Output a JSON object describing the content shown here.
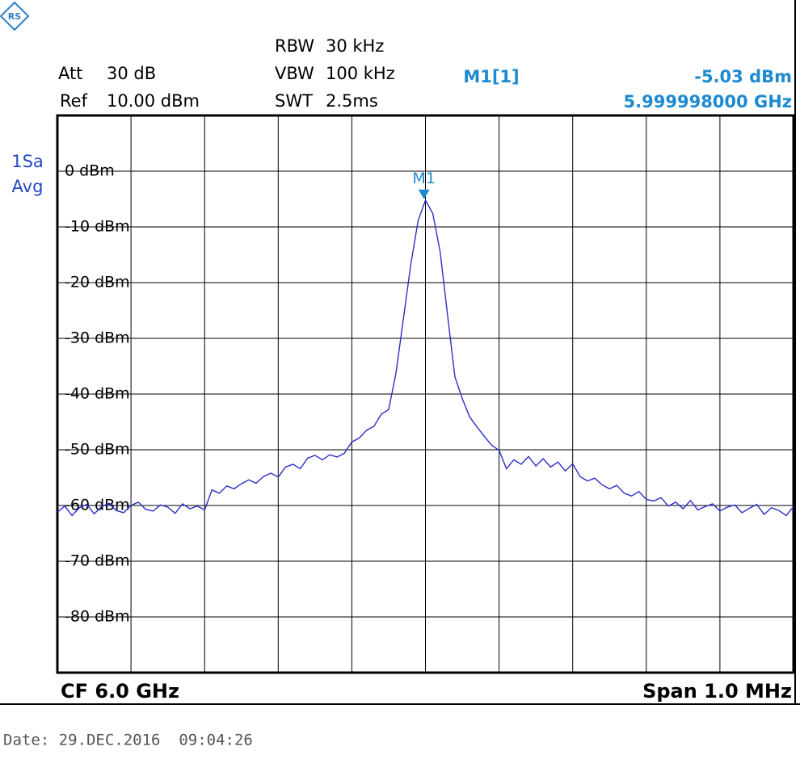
{
  "chart_data": {
    "type": "line",
    "settings": [
      {
        "name": "Att",
        "value": "30 dB"
      },
      {
        "name": "Ref",
        "value": "10.00 dBm"
      },
      {
        "name": "RBW",
        "value": "30 kHz"
      },
      {
        "name": "VBW",
        "value": "100 kHz"
      },
      {
        "name": "SWT",
        "value": "2.5ms"
      }
    ],
    "trace_mode": [
      "1Sa",
      "Avg"
    ],
    "marker": {
      "name": "M1",
      "readout_name": "M1[1]",
      "x": 5.999998,
      "x_label": "5.999998000 GHz",
      "y": -5.03,
      "y_label": "-5.03 dBm"
    },
    "center_label": "CF 6.0 GHz",
    "span_label": "Span 1.0 MHz",
    "date": "Date: 29.DEC.2016  09:04:26",
    "color": "#2b2fc8",
    "grid": true,
    "xlim": [
      5.9995,
      6.0005
    ],
    "ylim": [
      -90,
      10
    ],
    "yticks": [
      {
        "value": 0,
        "label": "0 dBm"
      },
      {
        "value": -10,
        "label": "-10 dBm"
      },
      {
        "value": -20,
        "label": "-20 dBm"
      },
      {
        "value": -30,
        "label": "-30 dBm"
      },
      {
        "value": -40,
        "label": "-40 dBm"
      },
      {
        "value": -50,
        "label": "-50 dBm"
      },
      {
        "value": -60,
        "label": "-60 dBm"
      },
      {
        "value": -70,
        "label": "-70 dBm"
      },
      {
        "value": -80,
        "label": "-80 dBm"
      }
    ],
    "x": [
      5.9995,
      5.99951,
      5.99952,
      5.99953,
      5.99954,
      5.99955,
      5.99956,
      5.99957,
      5.99958,
      5.99959,
      5.9996,
      5.99961,
      5.99962,
      5.99963,
      5.99964,
      5.99965,
      5.99966,
      5.99967,
      5.99968,
      5.99969,
      5.9997,
      5.99971,
      5.99972,
      5.99973,
      5.99974,
      5.99975,
      5.99976,
      5.99977,
      5.99978,
      5.99979,
      5.9998,
      5.99981,
      5.99982,
      5.99983,
      5.99984,
      5.99985,
      5.99986,
      5.99987,
      5.99988,
      5.99989,
      5.9999,
      5.99991,
      5.99992,
      5.99993,
      5.99994,
      5.99995,
      5.99996,
      5.99997,
      5.99998,
      5.99999,
      6.0,
      6.00001,
      6.00002,
      6.00003,
      6.00004,
      6.00005,
      6.00006,
      6.00007,
      6.00008,
      6.00009,
      6.0001,
      6.00011,
      6.00012,
      6.00013,
      6.00014,
      6.00015,
      6.00016,
      6.00017,
      6.00018,
      6.00019,
      6.0002,
      6.00021,
      6.00022,
      6.00023,
      6.00024,
      6.00025,
      6.00026,
      6.00027,
      6.00028,
      6.00029,
      6.0003,
      6.00031,
      6.00032,
      6.00033,
      6.00034,
      6.00035,
      6.00036,
      6.00037,
      6.00038,
      6.00039,
      6.0004,
      6.00041,
      6.00042,
      6.00043,
      6.00044,
      6.00045,
      6.00046,
      6.00047,
      6.00048,
      6.00049,
      6.0005
    ],
    "values": [
      -61.2,
      -60.1,
      -61.8,
      -60.4,
      -59.8,
      -61.5,
      -60.2,
      -59.6,
      -60.9,
      -61.3,
      -60.0,
      -59.4,
      -60.7,
      -61.0,
      -59.9,
      -60.3,
      -61.4,
      -59.7,
      -60.6,
      -60.1,
      -60.8,
      -57.2,
      -57.8,
      -56.5,
      -57.0,
      -56.1,
      -55.4,
      -56.0,
      -54.8,
      -54.2,
      -54.9,
      -53.1,
      -52.6,
      -53.4,
      -51.5,
      -51.0,
      -51.8,
      -50.9,
      -51.3,
      -50.6,
      -48.6,
      -47.9,
      -46.5,
      -45.8,
      -43.6,
      -42.8,
      -36.2,
      -26.5,
      -16.8,
      -8.9,
      -5.2,
      -7.6,
      -14.5,
      -25.8,
      -36.9,
      -40.8,
      -44.1,
      -45.9,
      -47.6,
      -49.2,
      -50.1,
      -53.4,
      -51.8,
      -52.6,
      -51.2,
      -52.9,
      -51.6,
      -53.1,
      -52.2,
      -53.8,
      -52.5,
      -54.8,
      -55.6,
      -55.1,
      -56.3,
      -57.0,
      -56.4,
      -57.8,
      -58.3,
      -57.5,
      -58.9,
      -59.2,
      -58.6,
      -60.1,
      -59.4,
      -60.6,
      -59.1,
      -60.8,
      -60.2,
      -59.7,
      -61.0,
      -60.3,
      -59.9,
      -61.3,
      -60.5,
      -59.8,
      -61.6,
      -60.4,
      -60.9,
      -61.8,
      -60.2
    ]
  }
}
